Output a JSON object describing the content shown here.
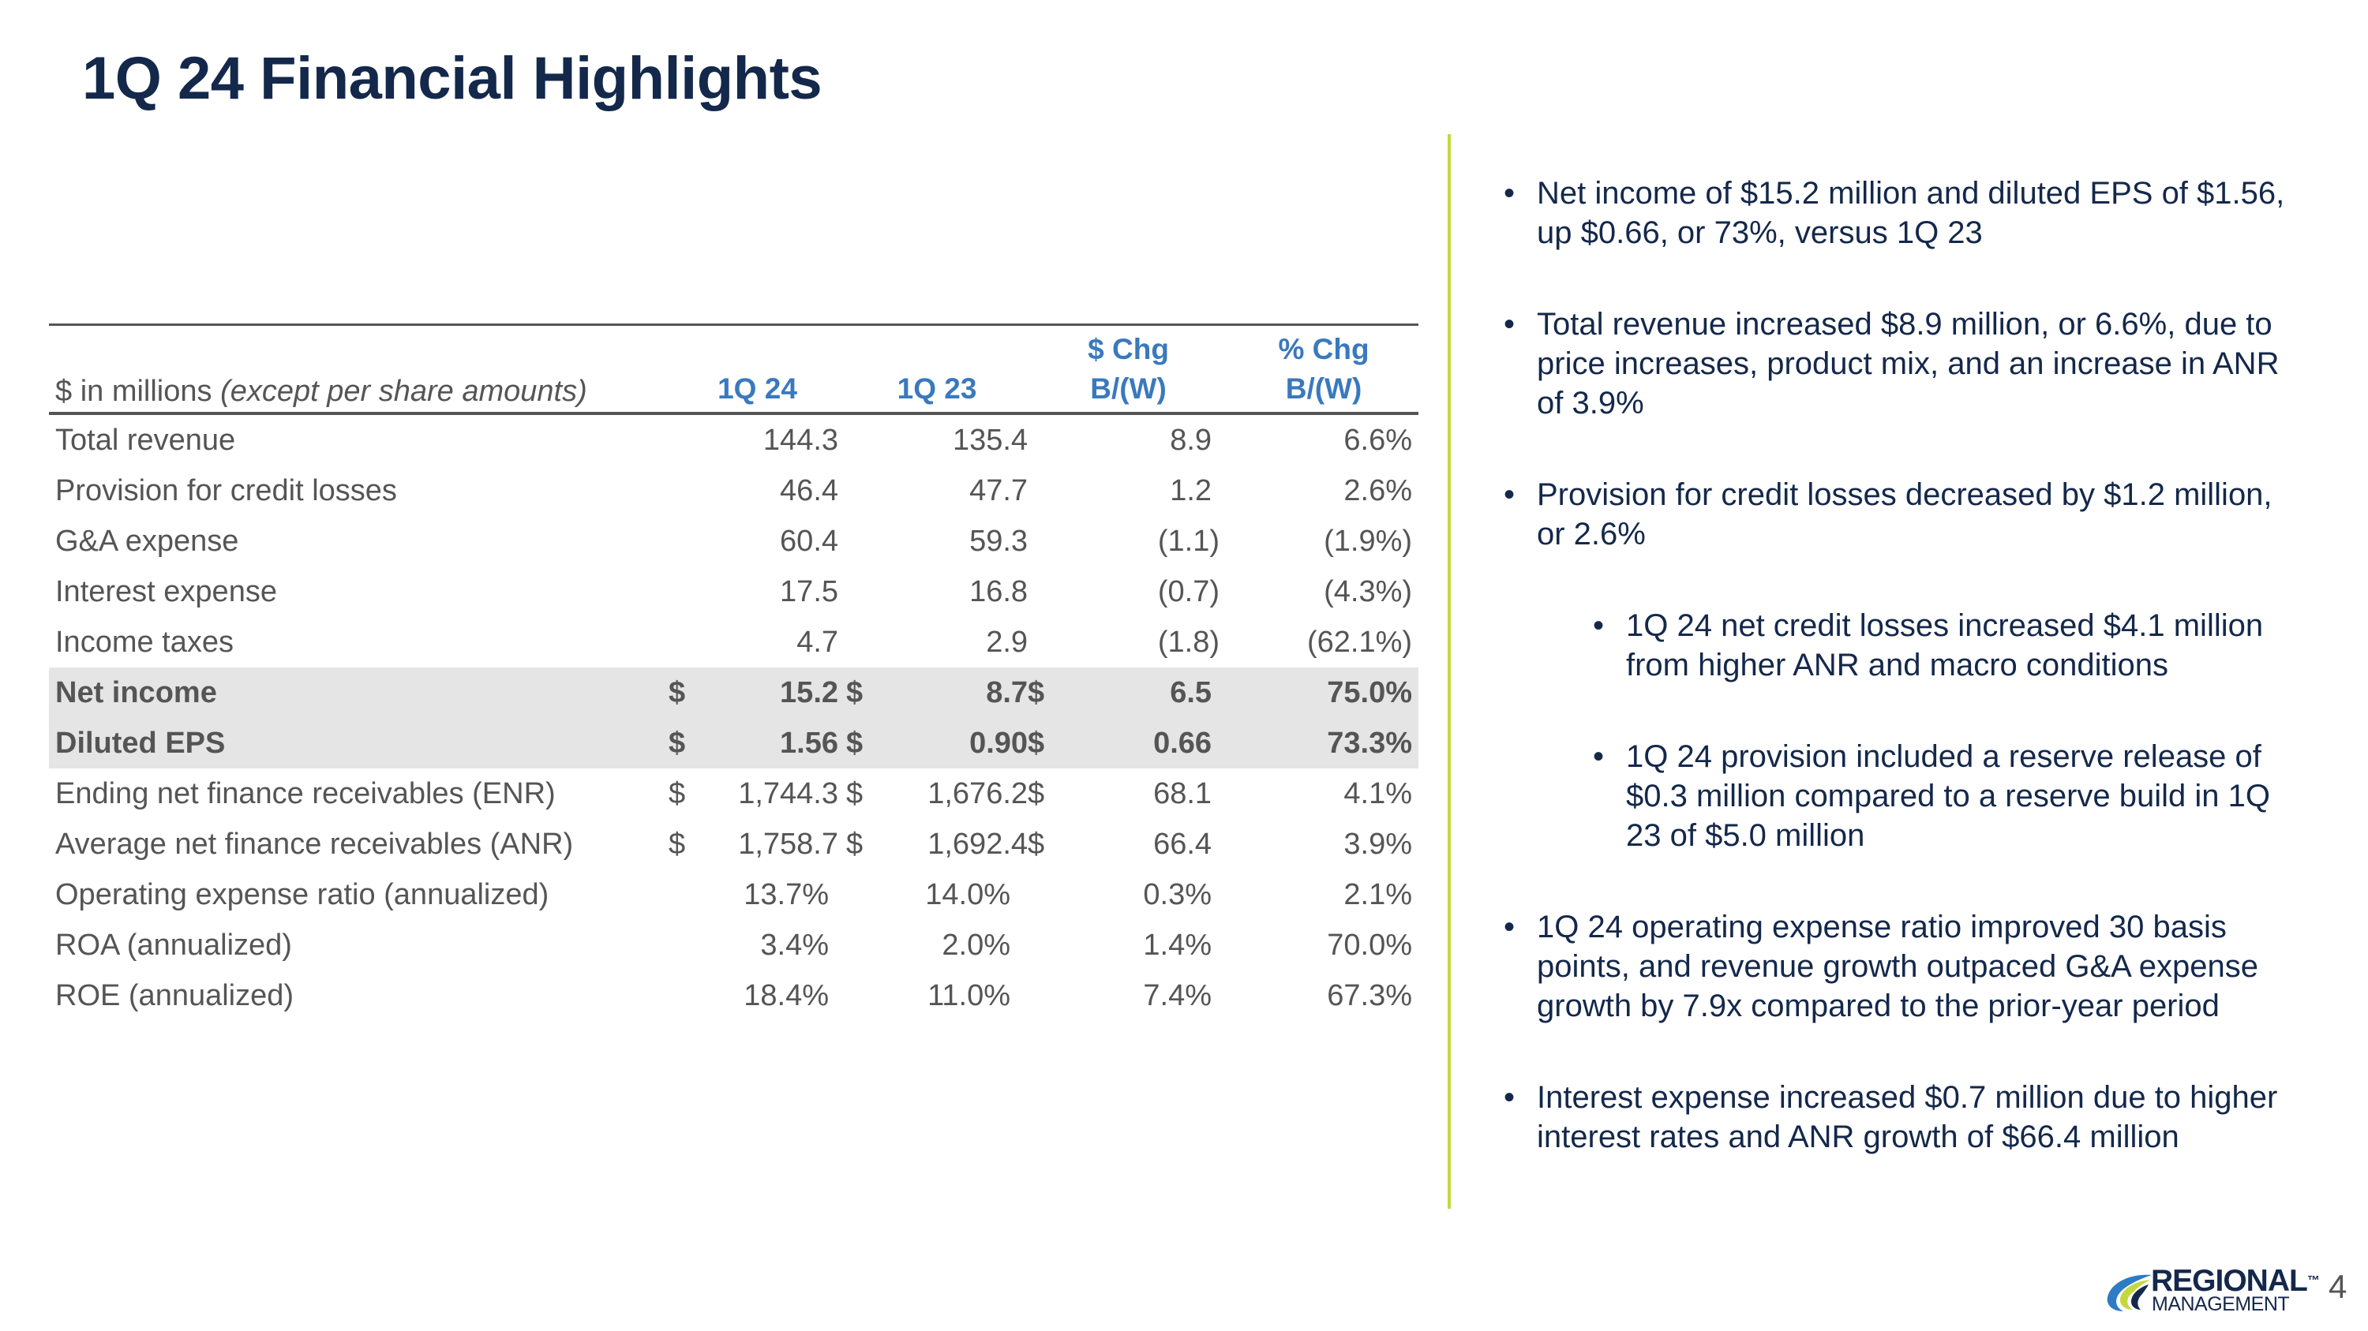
{
  "title": "1Q 24 Financial Highlights",
  "table": {
    "header": {
      "label_plain": "$ in millions ",
      "label_italic": "(except per share amounts)",
      "col1": "1Q 24",
      "col2": "1Q 23",
      "col3_line1": "$ Chg",
      "col3_line2": "B/(W)",
      "col4_line1": "% Chg",
      "col4_line2": "B/(W)"
    },
    "rows": [
      {
        "label": "Total revenue",
        "c1": "",
        "v1": "144.3",
        "c2": "",
        "v2": "135.4",
        "c3": "",
        "v3": "8.9",
        "pct": "6.6%"
      },
      {
        "label": "Provision for credit losses",
        "c1": "",
        "v1": "46.4",
        "c2": "",
        "v2": "47.7",
        "c3": "",
        "v3": "1.2",
        "pct": "2.6%"
      },
      {
        "label": "G&A expense",
        "c1": "",
        "v1": "60.4",
        "c2": "",
        "v2": "59.3",
        "c3": "",
        "v3": "(1.1)",
        "pct": "(1.9%)"
      },
      {
        "label": "Interest expense",
        "c1": "",
        "v1": "17.5",
        "c2": "",
        "v2": "16.8",
        "c3": "",
        "v3": "(0.7)",
        "pct": "(4.3%)"
      },
      {
        "label": "Income taxes",
        "c1": "",
        "v1": "4.7",
        "c2": "",
        "v2": "2.9",
        "c3": "",
        "v3": "(1.8)",
        "pct": "(62.1%)"
      },
      {
        "label": "Net income",
        "c1": "$",
        "v1": "15.2",
        "c2": "$",
        "v2": "8.7",
        "c3": "$",
        "v3": "6.5",
        "pct": "75.0%"
      },
      {
        "label": "Diluted EPS",
        "c1": "$",
        "v1": "1.56",
        "c2": "$",
        "v2": "0.90",
        "c3": "$",
        "v3": "0.66",
        "pct": "73.3%"
      },
      {
        "label": "Ending net finance receivables (ENR)",
        "c1": "$",
        "v1": "1,744.3",
        "c2": "$",
        "v2": "1,676.2",
        "c3": "$",
        "v3": "68.1",
        "pct": "4.1%"
      },
      {
        "label": "Average net finance receivables (ANR)",
        "c1": "$",
        "v1": "1,758.7",
        "c2": "$",
        "v2": "1,692.4",
        "c3": "$",
        "v3": "66.4",
        "pct": "3.9%"
      },
      {
        "label": "Operating expense ratio (annualized)",
        "c1": "",
        "v1": "13.7%",
        "c2": "",
        "v2": "14.0%",
        "c3": "",
        "v3": "0.3%",
        "pct": "2.1%"
      },
      {
        "label": "ROA (annualized)",
        "c1": "",
        "v1": "3.4%",
        "c2": "",
        "v2": "2.0%",
        "c3": "",
        "v3": "1.4%",
        "pct": "70.0%"
      },
      {
        "label": "ROE (annualized)",
        "c1": "",
        "v1": "18.4%",
        "c2": "",
        "v2": "11.0%",
        "c3": "",
        "v3": "7.4%",
        "pct": "67.3%"
      }
    ]
  },
  "bullets": [
    {
      "text": "Net income of $15.2 million and diluted EPS of $1.56, up $0.66, or 73%, versus 1Q 23"
    },
    {
      "text": "Total revenue increased $8.9 million, or 6.6%, due to price increases, product mix, and an increase in ANR of 3.9%"
    },
    {
      "text": "Provision for credit losses decreased by $1.2 million, or 2.6%"
    },
    {
      "text": "1Q 24 net credit losses increased $4.1 million from higher ANR and macro conditions"
    },
    {
      "text": "1Q 24 provision included a reserve release of $0.3 million compared to a reserve build in 1Q 23 of $5.0 million"
    },
    {
      "text": "1Q 24 operating expense ratio improved 30 basis points, and revenue growth outpaced G&A expense growth by 7.9x compared to the prior-year period"
    },
    {
      "text": "Interest expense increased $0.7 million due to higher interest rates and ANR growth of $66.4 million"
    }
  ],
  "bullet_glyph": "•",
  "logo": {
    "line1": "REGIONAL",
    "line2": "MANAGEMENT",
    "mark": "™"
  },
  "page_number": "4",
  "colors": {
    "title": "#14284b",
    "header_blue": "#3a79bd",
    "divider": "#c4d83e",
    "highlight_row": "#e5e5e5",
    "table_text": "#555555"
  }
}
